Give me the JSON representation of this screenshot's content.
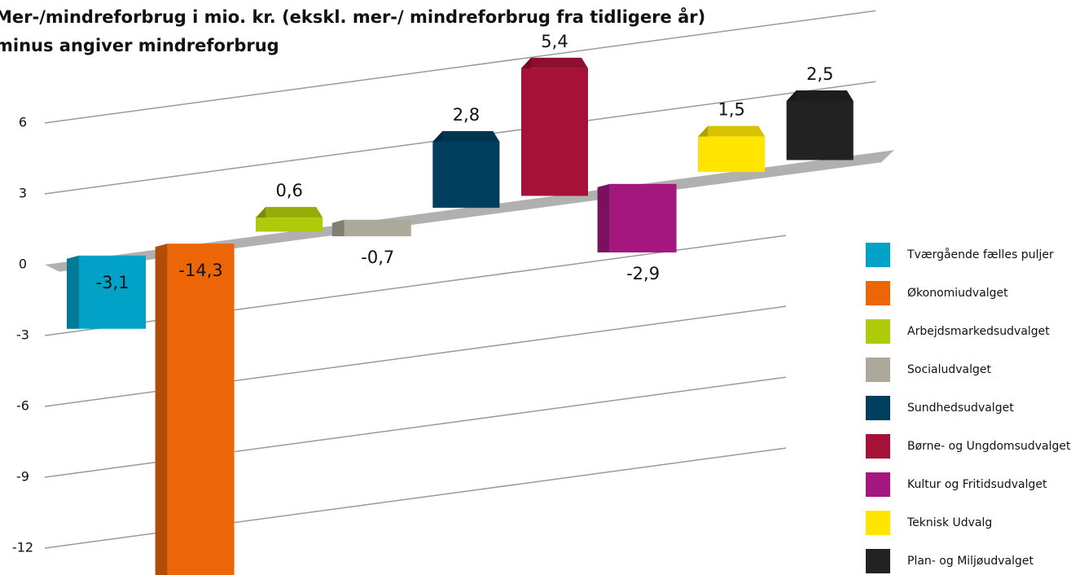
{
  "chart_data": {
    "type": "bar3d",
    "title": "Mer-/mindreforbrug i mio. kr. (ekskl. mer-/ mindreforbrug fra tidligere år)",
    "subtitle": "minus angiver mindreforbrug",
    "categories": [
      "Tværgående fælles puljer",
      "Økonomiudvalget",
      "Arbejdsmarkedsudvalget",
      "Socialudvalget",
      "Sundhedsudvalget",
      "Børne- og Ungdomsudvalget",
      "Kultur og Fritidsudvalget",
      "Teknisk Udvalg",
      "Plan- og Miljøudvalget"
    ],
    "values": [
      -3.1,
      -14.3,
      0.6,
      -0.7,
      2.8,
      5.4,
      -2.9,
      1.5,
      2.5
    ],
    "value_labels": [
      "-3,1",
      "-14,3",
      "0,6",
      "-0,7",
      "2,8",
      "5,4",
      "-2,9",
      "1,5",
      "2,5"
    ],
    "colors": [
      "#00a3c7",
      "#ec6608",
      "#afca0b",
      "#aca99a",
      "#003f5e",
      "#a6113a",
      "#a3177f",
      "#ffe500",
      "#222222"
    ],
    "ylim": [
      -12,
      6
    ],
    "yticks": [
      6,
      3,
      0,
      -3,
      -6,
      -9,
      -12
    ],
    "grid": true,
    "legend": "right"
  }
}
